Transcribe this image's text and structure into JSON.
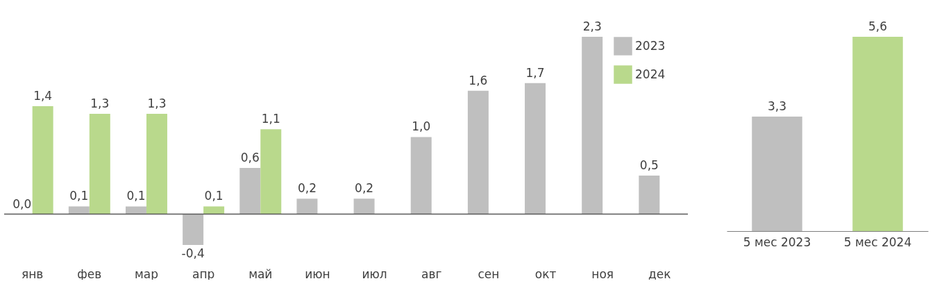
{
  "chart_data": [
    {
      "type": "bar",
      "categories": [
        "янв",
        "фев",
        "мар",
        "апр",
        "май",
        "июн",
        "июл",
        "авг",
        "сен",
        "окт",
        "ноя",
        "дек"
      ],
      "series": [
        {
          "name": "2023",
          "color": "#bfbfbf",
          "values": [
            0.0,
            0.1,
            0.1,
            -0.4,
            0.6,
            0.2,
            0.2,
            1.0,
            1.6,
            1.7,
            2.3,
            0.5
          ],
          "value_labels": [
            "0,0",
            "0,1",
            "0,1",
            "-0,4",
            "0,6",
            "0,2",
            "0,2",
            "1,0",
            "1,6",
            "1,7",
            "2,3",
            "0,5"
          ]
        },
        {
          "name": "2024",
          "color": "#b9d98c",
          "values": [
            1.4,
            1.3,
            1.3,
            0.1,
            1.1,
            null,
            null,
            null,
            null,
            null,
            null,
            null
          ],
          "value_labels": [
            "1,4",
            "1,3",
            "1,3",
            "0,1",
            "1,1",
            null,
            null,
            null,
            null,
            null,
            null,
            null
          ]
        }
      ],
      "legend": "top right",
      "tick_labels": "x"
    },
    {
      "type": "bar",
      "categories": [
        "5 мес 2023",
        "5 мес 2024"
      ],
      "values": [
        3.3,
        5.6
      ],
      "value_labels": [
        "3,3",
        "5,6"
      ],
      "colors": [
        "#bfbfbf",
        "#b9d98c"
      ],
      "tick_labels": "x"
    }
  ]
}
